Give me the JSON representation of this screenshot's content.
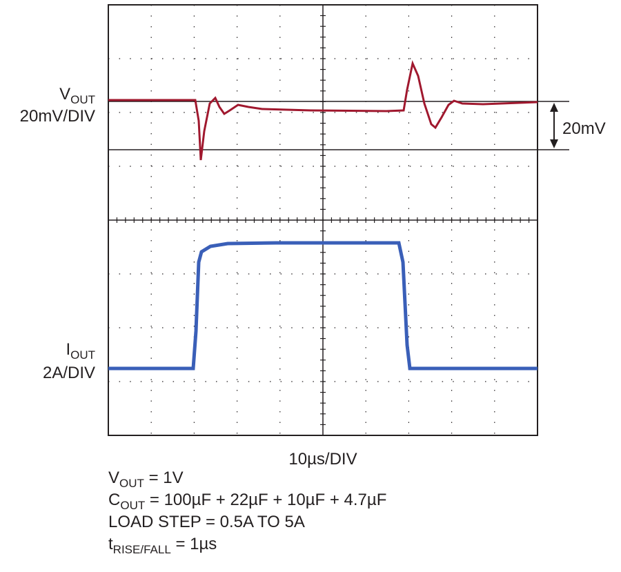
{
  "labels": {
    "vout": {
      "main": "V",
      "sub": "OUT"
    },
    "vout_scale": "20mV/DIV",
    "iout": {
      "main": "I",
      "sub": "OUT"
    },
    "iout_scale": "2A/DIV",
    "marker": "20mV",
    "time_scale": "10µs/DIV"
  },
  "notes": [
    {
      "main": "V",
      "sub": "OUT",
      "rest": " = 1V"
    },
    {
      "main": "C",
      "sub": "OUT",
      "rest": " = 100µF + 22µF + 10µF + 4.7µF"
    },
    {
      "main": "LOAD STEP = 0.5A TO 5A"
    },
    {
      "main": "t",
      "sub": "RISE/FALL",
      "rest": " = 1µs"
    }
  ]
}
